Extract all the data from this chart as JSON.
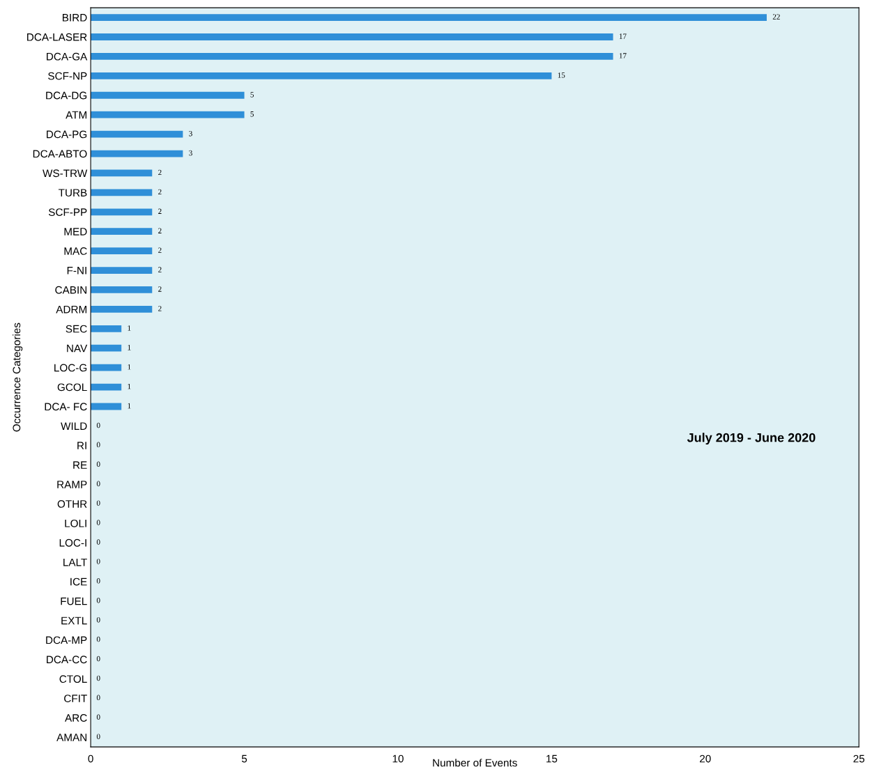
{
  "chart_data": {
    "type": "bar",
    "orientation": "horizontal",
    "xlabel": "Number of Events",
    "ylabel": "Occurrence Categories",
    "categories": [
      "BIRD",
      "DCA-LASER",
      "DCA-GA",
      "SCF-NP",
      "DCA-DG",
      "ATM",
      "DCA-PG",
      "DCA-ABTO",
      "WS-TRW",
      "TURB",
      "SCF-PP",
      "MED",
      "MAC",
      "F-NI",
      "CABIN",
      "ADRM",
      "SEC",
      "NAV",
      "LOC-G",
      "GCOL",
      "DCA- FC",
      "WILD",
      "RI",
      "RE",
      "RAMP",
      "OTHR",
      "LOLI",
      "LOC-I",
      "LALT",
      "ICE",
      "FUEL",
      "EXTL",
      "DCA-MP",
      "DCA-CC",
      "CTOL",
      "CFIT",
      "ARC",
      "AMAN"
    ],
    "values": [
      22,
      17,
      17,
      15,
      5,
      5,
      3,
      3,
      2,
      2,
      2,
      2,
      2,
      2,
      2,
      2,
      1,
      1,
      1,
      1,
      1,
      0,
      0,
      0,
      0,
      0,
      0,
      0,
      0,
      0,
      0,
      0,
      0,
      0,
      0,
      0,
      0,
      0
    ],
    "color": "#2f8fd8",
    "data_labels": true,
    "xlim": [
      0,
      25
    ],
    "xticks": [
      0,
      5,
      10,
      15,
      20,
      25
    ],
    "grid": false,
    "annotations": [
      "July 2019 - June 2020"
    ]
  }
}
